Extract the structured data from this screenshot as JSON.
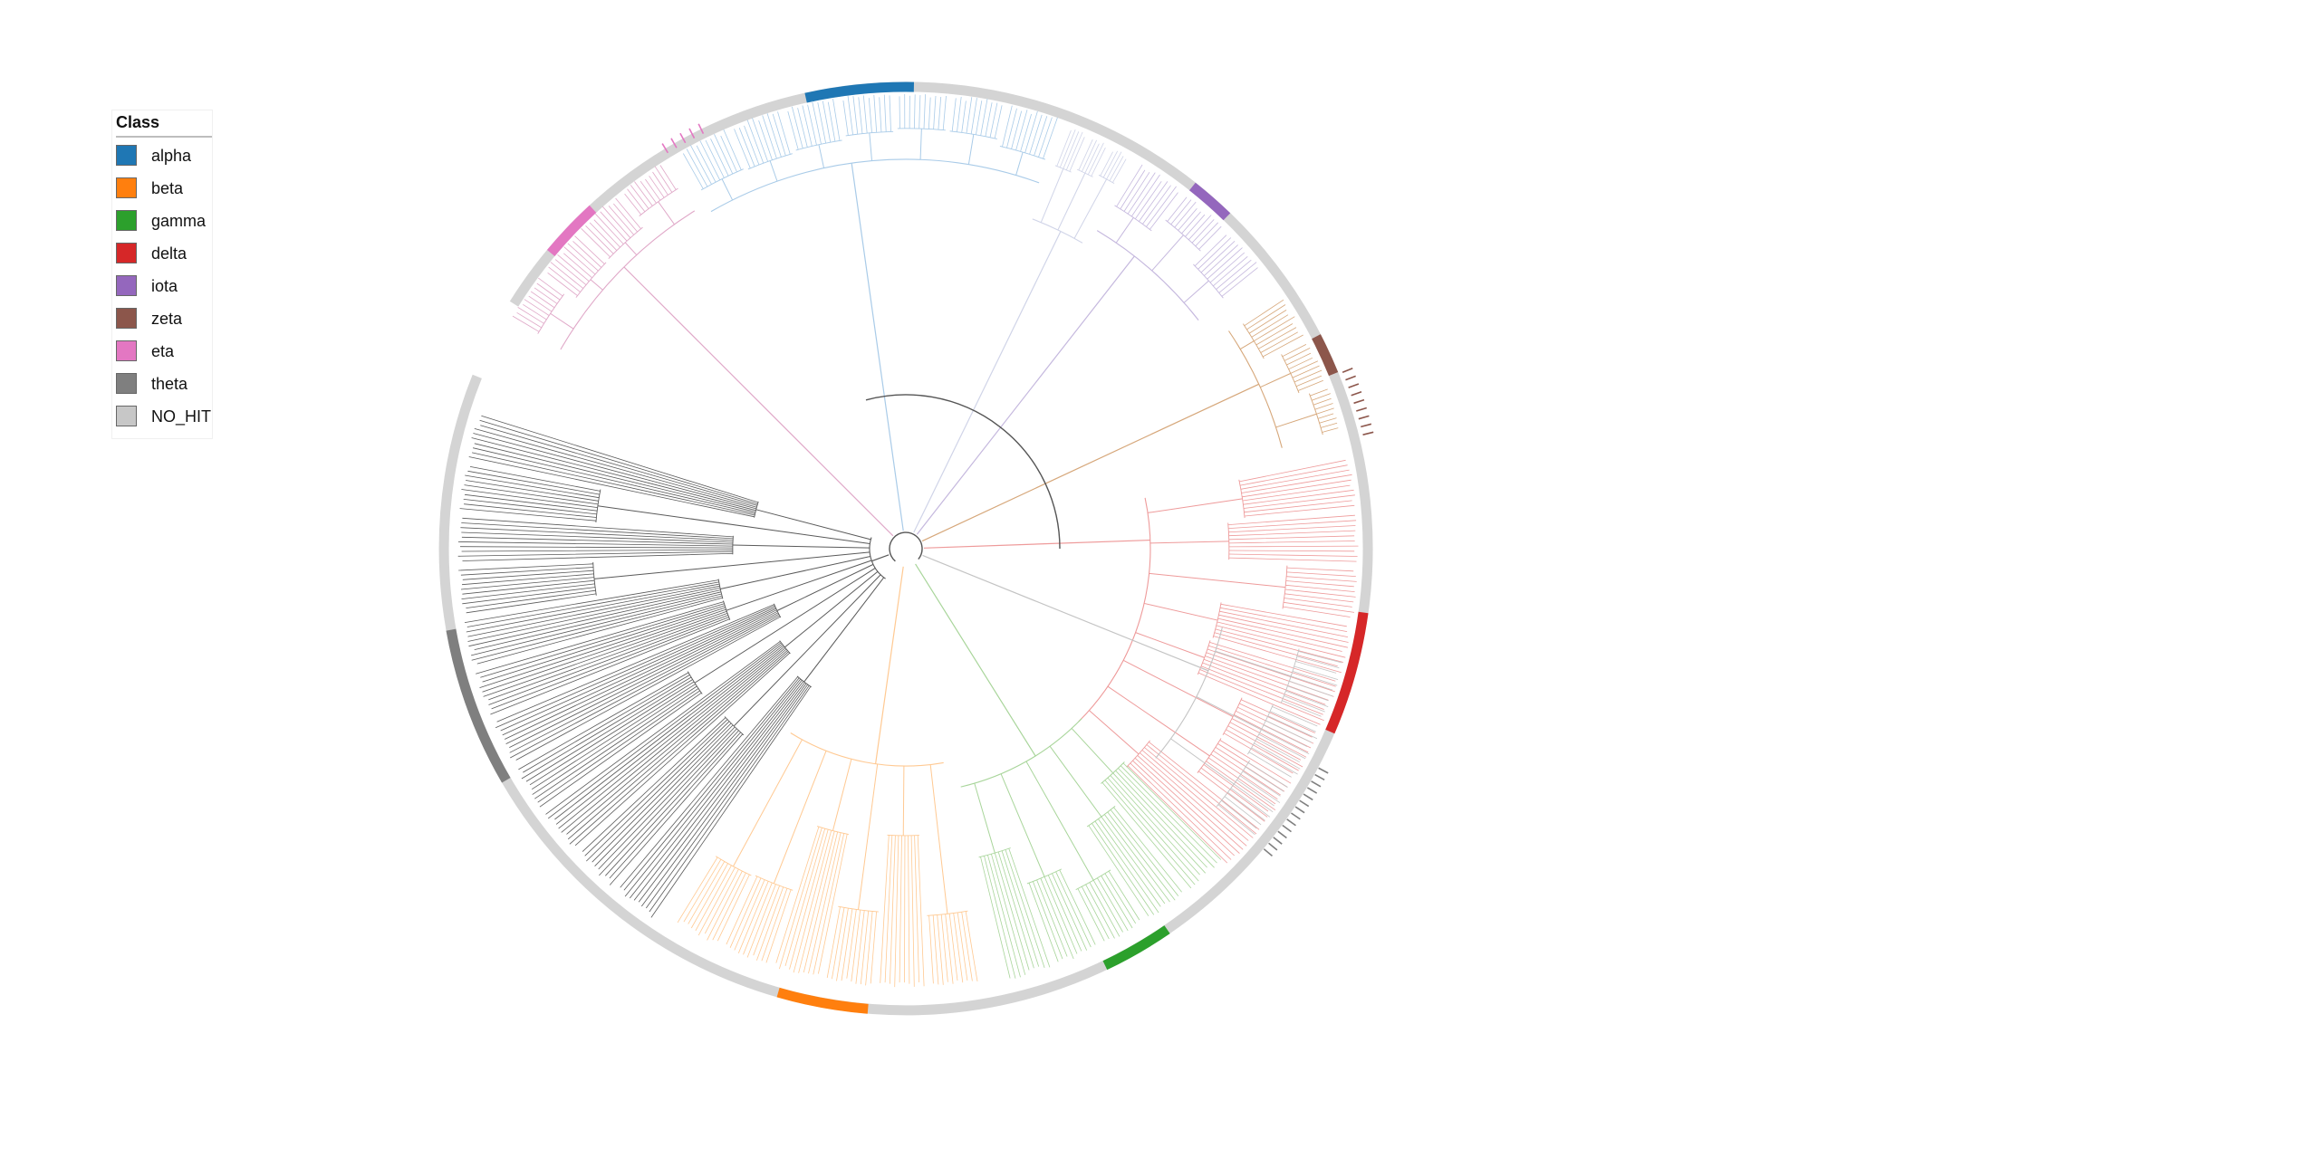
{
  "legend": {
    "title": "Class",
    "items": [
      {
        "label": "alpha",
        "color": "#1f77b4"
      },
      {
        "label": "beta",
        "color": "#ff7f0e"
      },
      {
        "label": "gamma",
        "color": "#2ca02c"
      },
      {
        "label": "delta",
        "color": "#d62728"
      },
      {
        "label": "iota",
        "color": "#9467bd"
      },
      {
        "label": "zeta",
        "color": "#8c564b"
      },
      {
        "label": "eta",
        "color": "#e377c2"
      },
      {
        "label": "theta",
        "color": "#7f7f7f"
      },
      {
        "label": "NO_HIT",
        "color": "#c7c7c7"
      }
    ]
  },
  "tree": {
    "layout": "circular",
    "ring_background_color": "#d4d4d4",
    "clades": [
      {
        "class": "eta",
        "branch_color": "#e0a8c8"
      },
      {
        "class": "alpha",
        "branch_color": "#a9cbe8"
      },
      {
        "class": "NO_HIT",
        "branch_color": "#d0d4e8"
      },
      {
        "class": "iota",
        "branch_color": "#c5b8de"
      },
      {
        "class": "zeta",
        "branch_color": "#d6a77a"
      },
      {
        "class": "delta",
        "branch_color": "#ee9a9a"
      },
      {
        "class": "NO_HIT",
        "branch_color": "#c4c4c4"
      },
      {
        "class": "gamma",
        "branch_color": "#a8d59a"
      },
      {
        "class": "beta",
        "branch_color": "#ffc992"
      },
      {
        "class": "theta",
        "branch_color": "#5a5a5a"
      }
    ]
  }
}
